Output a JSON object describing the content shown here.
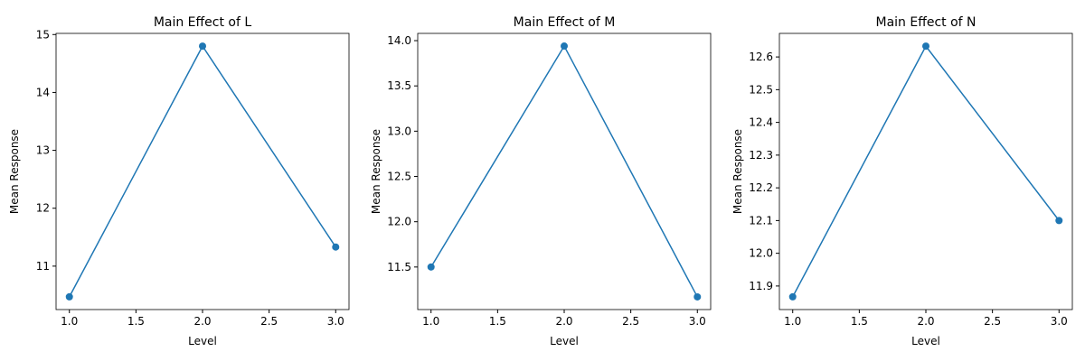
{
  "chart_data": [
    {
      "type": "line",
      "title": "Main Effect of L",
      "xlabel": "Level",
      "ylabel": "Mean Response",
      "color": "#1f77b4",
      "x": [
        1,
        2,
        3
      ],
      "values": [
        10.47,
        14.8,
        11.33
      ],
      "xlim": [
        0.9,
        3.1
      ],
      "ylim": [
        10.25,
        15.02
      ],
      "xticks": [
        {
          "value": 1,
          "label": "1.0"
        },
        1.5,
        {
          "value": 2,
          "label": "2.0"
        },
        2.5,
        {
          "value": 3,
          "label": "3.0"
        }
      ],
      "yticks": [
        11,
        12,
        13,
        14,
        15
      ]
    },
    {
      "type": "line",
      "title": "Main Effect of M",
      "xlabel": "Level",
      "ylabel": "Mean Response",
      "color": "#1f77b4",
      "x": [
        1,
        2,
        3
      ],
      "values": [
        11.5,
        13.94,
        11.17
      ],
      "xlim": [
        0.9,
        3.1
      ],
      "ylim": [
        11.03,
        14.08
      ],
      "xticks": [
        {
          "value": 1,
          "label": "1.0"
        },
        1.5,
        {
          "value": 2,
          "label": "2.0"
        },
        2.5,
        {
          "value": 3,
          "label": "3.0"
        }
      ],
      "yticks": [
        11.5,
        {
          "value": 12,
          "label": "12.0"
        },
        12.5,
        {
          "value": 13,
          "label": "13.0"
        },
        13.5,
        {
          "value": 14,
          "label": "14.0"
        }
      ]
    },
    {
      "type": "line",
      "title": "Main Effect of N",
      "xlabel": "Level",
      "ylabel": "Mean Response",
      "color": "#1f77b4",
      "x": [
        1,
        2,
        3
      ],
      "values": [
        11.867,
        12.633,
        12.1
      ],
      "xlim": [
        0.9,
        3.1
      ],
      "ylim": [
        11.828,
        12.672
      ],
      "xticks": [
        {
          "value": 1,
          "label": "1.0"
        },
        1.5,
        {
          "value": 2,
          "label": "2.0"
        },
        2.5,
        {
          "value": 3,
          "label": "3.0"
        }
      ],
      "yticks": [
        11.9,
        {
          "value": 12,
          "label": "12.0"
        },
        12.1,
        12.2,
        12.3,
        12.4,
        12.5,
        12.6
      ]
    }
  ]
}
